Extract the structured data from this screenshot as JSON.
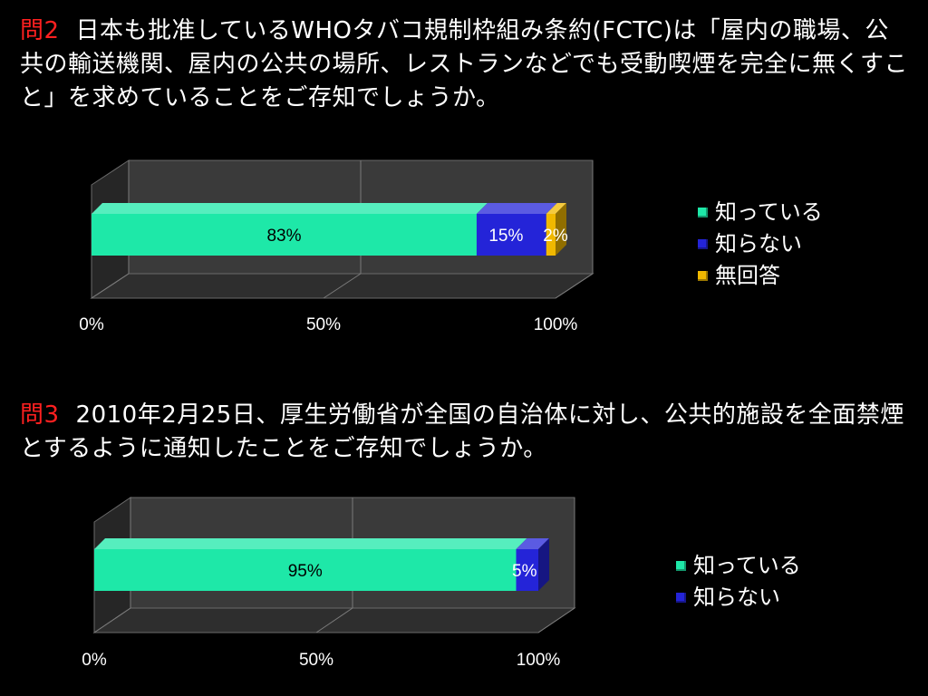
{
  "q2": {
    "label": "問2",
    "text": "日本も批准しているWHOタバコ規制枠組み条約(FCTC)は「屋内の職場、公共の輸送機関、屋内の公共の場所、レストランなどでも受動喫煙を完全に無くすこと」を求めていることをご存知でしょうか。"
  },
  "q3": {
    "label": "問3",
    "text": "2010年2月25日、厚生労働省が全国の自治体に対し、公共的施設を全面禁煙とするように通知したことをご存知でしょうか。"
  },
  "colors": {
    "know": "#1ee8a8",
    "dont_know": "#2424d8",
    "no_answer": "#f0b800",
    "question_label": "#ff2020"
  },
  "chart_data": [
    {
      "type": "bar",
      "orientation": "horizontal",
      "stacked": true,
      "normalized": "percent",
      "categories": [
        ""
      ],
      "series": [
        {
          "name": "知っている",
          "values": [
            83
          ],
          "label": "83%",
          "color": "#1ee8a8"
        },
        {
          "name": "知らない",
          "values": [
            15
          ],
          "label": "15%",
          "color": "#2424d8"
        },
        {
          "name": "無回答",
          "values": [
            2
          ],
          "label": "2%",
          "color": "#f0b800"
        }
      ],
      "xlim": [
        0,
        100
      ],
      "x_ticks": [
        "0%",
        "50%",
        "100%"
      ],
      "grid": true,
      "legend": "right"
    },
    {
      "type": "bar",
      "orientation": "horizontal",
      "stacked": true,
      "normalized": "percent",
      "categories": [
        ""
      ],
      "series": [
        {
          "name": "知っている",
          "values": [
            95
          ],
          "label": "95%",
          "color": "#1ee8a8"
        },
        {
          "name": "知らない",
          "values": [
            5
          ],
          "label": "5%",
          "color": "#2424d8"
        }
      ],
      "xlim": [
        0,
        100
      ],
      "x_ticks": [
        "0%",
        "50%",
        "100%"
      ],
      "grid": true,
      "legend": "right"
    }
  ]
}
